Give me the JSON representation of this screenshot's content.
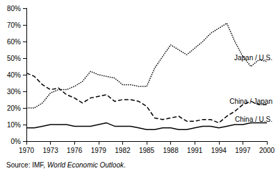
{
  "chart_data": {
    "type": "line",
    "caption": [
      "Source: IMF, ",
      "World Economic Outlook",
      "."
    ],
    "x": [
      1970,
      1971,
      1972,
      1973,
      1974,
      1975,
      1976,
      1977,
      1978,
      1979,
      1980,
      1981,
      1982,
      1983,
      1984,
      1985,
      1986,
      1987,
      1988,
      1989,
      1990,
      1991,
      1992,
      1993,
      1994,
      1995,
      1996,
      1997,
      1998,
      1999,
      2000
    ],
    "series": [
      {
        "name": "Japan / U.S.",
        "color": "#000000",
        "line_style": "dotted",
        "values": [
          20,
          20,
          23,
          29,
          31,
          31,
          33,
          36,
          42,
          40,
          39,
          38,
          34,
          34,
          33,
          33,
          44,
          51,
          58,
          55,
          52,
          56,
          60,
          65,
          68,
          71,
          60,
          51,
          45,
          49,
          48
        ]
      },
      {
        "name": "China / Japan",
        "color": "#000000",
        "line_style": "dashed",
        "values": [
          41,
          39,
          34,
          31,
          32,
          28,
          26,
          23,
          26,
          27,
          28,
          24,
          25,
          25,
          24,
          21,
          14,
          13,
          14,
          15,
          12,
          12,
          13,
          13,
          11,
          15,
          18,
          22,
          24,
          22,
          22
        ]
      },
      {
        "name": "China / U.S.",
        "color": "#000000",
        "line_style": "solid",
        "values": [
          8,
          8,
          9,
          10,
          10,
          10,
          9,
          9,
          9,
          10,
          11,
          9,
          9,
          9,
          8,
          7,
          7,
          8,
          8,
          7,
          7,
          8,
          9,
          9,
          8,
          9,
          10,
          10,
          11,
          11,
          11
        ]
      }
    ],
    "xlim": [
      1970,
      2000
    ],
    "xticks": [
      1970,
      1973,
      1976,
      1979,
      1982,
      1985,
      1988,
      1991,
      1994,
      1997,
      2000
    ],
    "ylim": [
      0,
      80
    ],
    "yticks": [
      {
        "value": 0,
        "label": "0%"
      },
      {
        "value": 10,
        "label": "10%"
      },
      {
        "value": 20,
        "label": "20%"
      },
      {
        "value": 30,
        "label": "30%"
      },
      {
        "value": 40,
        "label": "40%"
      },
      {
        "value": 50,
        "label": "50%"
      },
      {
        "value": 60,
        "label": "60%"
      },
      {
        "value": 70,
        "label": "70%"
      },
      {
        "value": 80,
        "label": "80%"
      }
    ],
    "grid": false
  }
}
